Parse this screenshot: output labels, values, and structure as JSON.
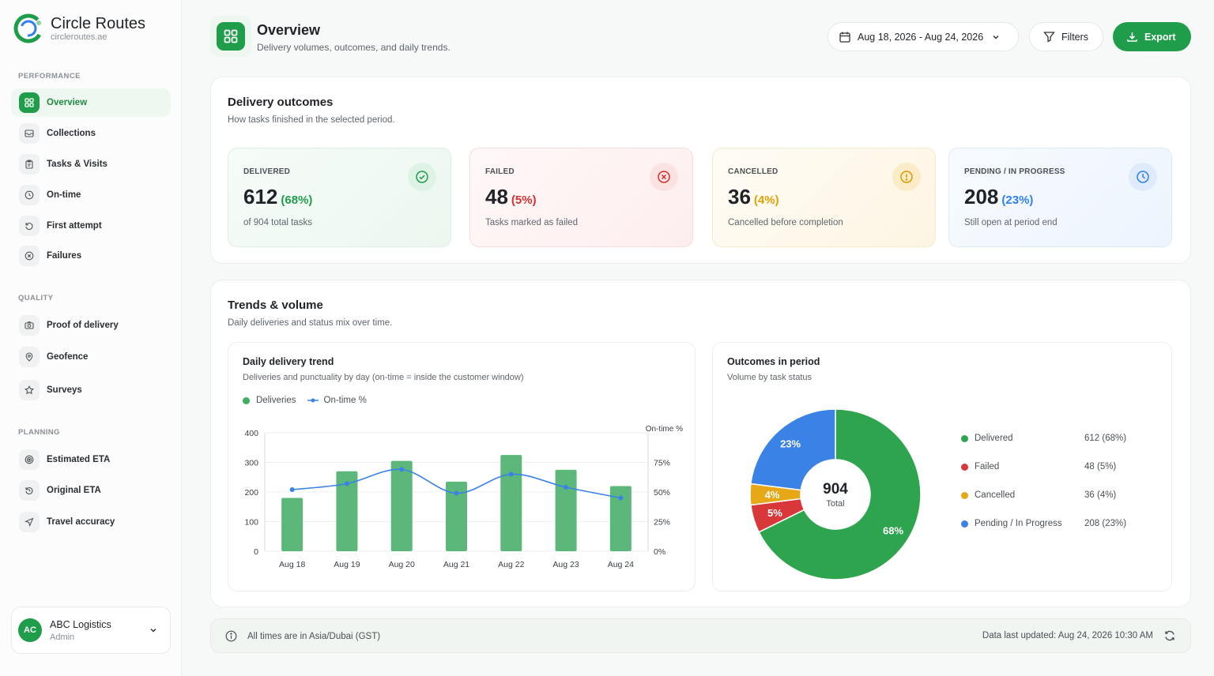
{
  "brand": {
    "name": "Circle Routes",
    "url": "circleroutes.ae"
  },
  "sidebar": {
    "sections": [
      {
        "label": "PERFORMANCE",
        "items": [
          {
            "label": "Overview",
            "icon": "grid-icon",
            "active": true
          },
          {
            "label": "Collections",
            "icon": "inbox-icon"
          },
          {
            "label": "Tasks & Visits",
            "icon": "clipboard-icon"
          },
          {
            "label": "On-time",
            "icon": "clock-icon"
          },
          {
            "label": "First attempt",
            "icon": "rotate-icon"
          },
          {
            "label": "Failures",
            "icon": "x-circle-icon"
          }
        ]
      },
      {
        "label": "QUALITY",
        "items": [
          {
            "label": "Proof of delivery",
            "icon": "camera-icon"
          },
          {
            "label": "Geofence",
            "icon": "map-pin-icon"
          },
          {
            "label": "Surveys",
            "icon": "star-icon"
          }
        ]
      },
      {
        "label": "PLANNING",
        "items": [
          {
            "label": "Estimated ETA",
            "icon": "target-icon"
          },
          {
            "label": "Original ETA",
            "icon": "history-icon"
          },
          {
            "label": "Travel accuracy",
            "icon": "navigation-icon"
          }
        ]
      }
    ],
    "account": {
      "initials": "AC",
      "name": "ABC Logistics",
      "role": "Admin"
    }
  },
  "header": {
    "title": "Overview",
    "subtitle": "Delivery volumes, outcomes, and daily trends.",
    "date_range": "Aug 18, 2026 - Aug 24, 2026",
    "filters_label": "Filters",
    "export_label": "Export"
  },
  "outcomes": {
    "title": "Delivery outcomes",
    "subtitle": "How tasks finished in the selected period.",
    "stats": [
      {
        "label": "DELIVERED",
        "value": "612",
        "pct": "(68%)",
        "desc": "of 904 total tasks",
        "color": "#1f9d4b"
      },
      {
        "label": "FAILED",
        "value": "48",
        "pct": "(5%)",
        "desc": "Tasks marked as failed",
        "color": "#d63031"
      },
      {
        "label": "CANCELLED",
        "value": "36",
        "pct": "(4%)",
        "desc": "Cancelled before completion",
        "color": "#e0a106"
      },
      {
        "label": "PENDING / IN PROGRESS",
        "value": "208",
        "pct": "(23%)",
        "desc": "Still open at period end",
        "color": "#2f80ed"
      }
    ]
  },
  "trends": {
    "title": "Trends & volume",
    "subtitle": "Daily deliveries and status mix over time.",
    "daily": {
      "title": "Daily delivery trend",
      "subtitle": "Deliveries and punctuality by day (on-time = inside the customer window)",
      "legend_bars": "Deliveries",
      "legend_line": "On-time %",
      "right_axis_label": "On-time %"
    },
    "outcomes_chart": {
      "title": "Outcomes in period",
      "subtitle": "Volume by task status",
      "total_value": "904",
      "total_label": "Total",
      "legend": [
        {
          "label": "Delivered",
          "value": "612 (68%)",
          "color": "#2ea44f"
        },
        {
          "label": "Failed",
          "value": "48 (5%)",
          "color": "#d9383a"
        },
        {
          "label": "Cancelled",
          "value": "36 (4%)",
          "color": "#e6a817"
        },
        {
          "label": "Pending / In Progress",
          "value": "208 (23%)",
          "color": "#3b82e6"
        }
      ]
    }
  },
  "footer": {
    "timezone": "All times are in Asia/Dubai (GST)",
    "updated": "Data last updated: Aug 24, 2026 10:30 AM"
  },
  "chart_data": [
    {
      "type": "bar",
      "title": "Daily delivery trend",
      "categories": [
        "Aug 18",
        "Aug 19",
        "Aug 20",
        "Aug 21",
        "Aug 22",
        "Aug 23",
        "Aug 24"
      ],
      "series": [
        {
          "name": "Deliveries",
          "type": "bar",
          "axis": "left",
          "values": [
            180,
            270,
            305,
            235,
            325,
            275,
            220
          ],
          "color": "#5cb87a"
        },
        {
          "name": "On-time %",
          "type": "line",
          "axis": "right",
          "values": [
            52,
            57,
            69,
            49,
            65,
            54,
            45
          ],
          "color": "#3b82e6"
        }
      ],
      "y_left_ticks": [
        0,
        100,
        200,
        300,
        400
      ],
      "y_right_ticks": [
        "0%",
        "25%",
        "50%",
        "75%"
      ],
      "ylim_left": [
        0,
        400
      ],
      "ylim_right": [
        0,
        100
      ],
      "grid": true,
      "legend": "top-left"
    },
    {
      "type": "pie",
      "title": "Outcomes in period",
      "labels": [
        "Delivered",
        "Failed",
        "Cancelled",
        "Pending / In Progress"
      ],
      "values": [
        612,
        48,
        36,
        208
      ],
      "slice_labels": [
        "68%",
        "5%",
        "4%",
        "23%"
      ],
      "colors": [
        "#2ea44f",
        "#d9383a",
        "#e6a817",
        "#3b82e6"
      ],
      "donut": true
    }
  ]
}
